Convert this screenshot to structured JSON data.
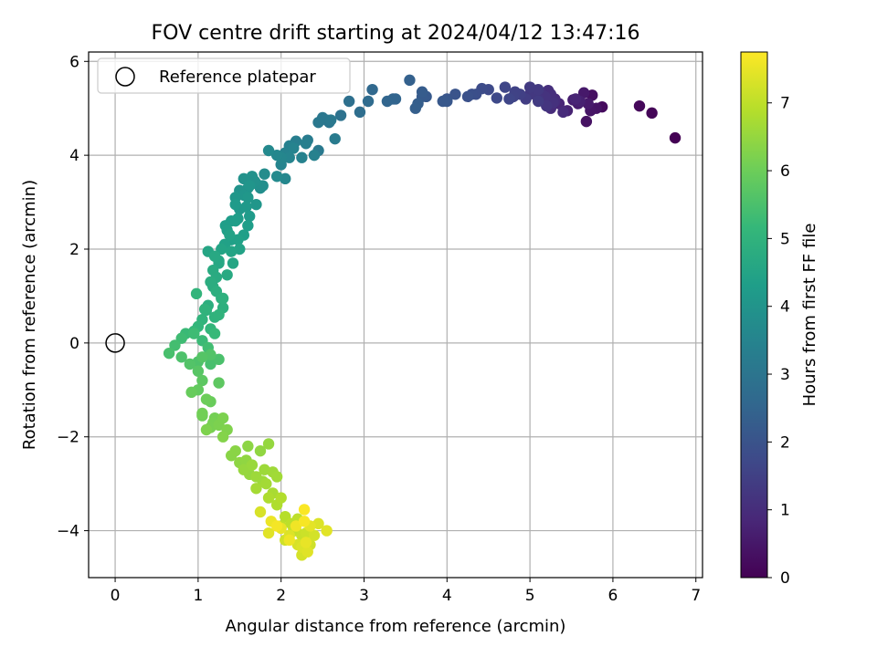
{
  "chart_data": {
    "type": "scatter",
    "title": "FOV centre drift starting at 2024/04/12 13:47:16",
    "xlabel": "Angular distance from reference (arcmin)",
    "ylabel": "Rotation from reference (arcmin)",
    "xlim": [
      -0.32,
      7.08
    ],
    "ylim": [
      -5.0,
      6.2
    ],
    "xticks": [
      "0",
      "1",
      "2",
      "3",
      "4",
      "5",
      "6",
      "7"
    ],
    "yticks": [
      "−4",
      "−2",
      "0",
      "2",
      "4",
      "6"
    ],
    "grid": true,
    "legend": {
      "position": "top-left",
      "entries": [
        "Reference platepar"
      ]
    },
    "reference_point": {
      "x": 0,
      "y": 0
    },
    "colorbar": {
      "label": "Hours from first FF file",
      "min": 0,
      "max": 7.75,
      "ticks": [
        "0",
        "1",
        "2",
        "3",
        "4",
        "5",
        "6",
        "7"
      ],
      "colormap": "viridis",
      "colors": [
        "#440154",
        "#482878",
        "#3e4989",
        "#31688e",
        "#26828e",
        "#1f9e89",
        "#35b779",
        "#6ece58",
        "#b5de2b",
        "#fde725"
      ]
    },
    "series": [
      {
        "points": [
          [
            6.75,
            4.37,
            0.0
          ],
          [
            6.47,
            4.9,
            0.08
          ],
          [
            6.32,
            5.05,
            0.15
          ],
          [
            5.87,
            5.03,
            0.22
          ],
          [
            5.75,
            5.28,
            0.3
          ],
          [
            5.68,
            4.72,
            0.37
          ],
          [
            5.73,
            4.95,
            0.44
          ],
          [
            5.65,
            5.33,
            0.52
          ],
          [
            5.58,
            5.1,
            0.6
          ],
          [
            5.52,
            5.18,
            0.67
          ],
          [
            5.45,
            4.95,
            0.74
          ],
          [
            5.35,
            5.1,
            0.82
          ],
          [
            5.3,
            5.2,
            0.9
          ],
          [
            5.25,
            5.0,
            0.97
          ],
          [
            5.22,
            5.38,
            1.04
          ],
          [
            5.15,
            5.3,
            1.12
          ],
          [
            5.1,
            5.2,
            1.2
          ],
          [
            5.05,
            5.35,
            1.27
          ],
          [
            5.0,
            5.45,
            1.34
          ],
          [
            4.95,
            5.2,
            1.42
          ],
          [
            4.88,
            5.3,
            1.5
          ],
          [
            4.8,
            5.25,
            1.57
          ],
          [
            4.7,
            5.45,
            1.64
          ],
          [
            4.6,
            5.22,
            1.72
          ],
          [
            4.42,
            5.42,
            1.8
          ],
          [
            4.35,
            5.3,
            1.87
          ],
          [
            4.25,
            5.25,
            1.94
          ],
          [
            4.1,
            5.3,
            2.02
          ],
          [
            4.0,
            5.15,
            2.1
          ],
          [
            3.75,
            5.25,
            2.17
          ],
          [
            3.7,
            5.35,
            2.24
          ],
          [
            3.62,
            5.0,
            2.32
          ],
          [
            3.55,
            5.6,
            2.4
          ],
          [
            3.35,
            5.2,
            2.47
          ],
          [
            3.28,
            5.15,
            2.54
          ],
          [
            3.1,
            5.4,
            2.62
          ],
          [
            3.05,
            5.15,
            2.7
          ],
          [
            2.95,
            4.92,
            2.77
          ],
          [
            2.82,
            5.15,
            2.84
          ],
          [
            2.72,
            4.85,
            2.92
          ],
          [
            2.58,
            4.7,
            3.0
          ],
          [
            2.5,
            4.8,
            3.07
          ],
          [
            2.45,
            4.1,
            3.14
          ],
          [
            2.32,
            4.32,
            3.22
          ],
          [
            2.18,
            4.3,
            3.3
          ],
          [
            2.1,
            4.2,
            3.37
          ],
          [
            2.05,
            4.05,
            3.44
          ],
          [
            2.0,
            3.8,
            3.52
          ],
          [
            1.95,
            4.0,
            3.6
          ],
          [
            1.85,
            4.1,
            3.67
          ],
          [
            1.8,
            3.6,
            3.74
          ],
          [
            1.75,
            3.3,
            3.82
          ],
          [
            1.68,
            3.45,
            3.9
          ],
          [
            1.6,
            3.3,
            3.97
          ],
          [
            1.55,
            3.15,
            4.04
          ],
          [
            1.5,
            2.85,
            4.12
          ],
          [
            1.45,
            2.95,
            4.2
          ],
          [
            1.4,
            2.6,
            4.27
          ],
          [
            1.35,
            2.4,
            4.34
          ],
          [
            1.32,
            2.1,
            4.42
          ],
          [
            1.28,
            2.0,
            4.5
          ],
          [
            1.25,
            1.75,
            4.57
          ],
          [
            1.2,
            1.85,
            4.64
          ],
          [
            1.18,
            1.55,
            4.72
          ],
          [
            1.15,
            1.3,
            4.8
          ],
          [
            1.12,
            0.8,
            4.87
          ],
          [
            1.1,
            0.7,
            4.94
          ],
          [
            1.05,
            0.5,
            5.02
          ],
          [
            1.0,
            0.35,
            5.1
          ],
          [
            0.95,
            0.25,
            5.17
          ],
          [
            0.85,
            0.2,
            5.24
          ],
          [
            0.8,
            0.1,
            5.32
          ],
          [
            0.72,
            -0.05,
            5.4
          ],
          [
            0.65,
            -0.22,
            5.47
          ],
          [
            0.8,
            -0.3,
            5.54
          ],
          [
            0.9,
            -0.45,
            5.62
          ],
          [
            1.0,
            -0.6,
            5.7
          ],
          [
            1.05,
            -0.8,
            5.77
          ],
          [
            1.0,
            -1.0,
            5.84
          ],
          [
            0.92,
            -1.05,
            5.92
          ],
          [
            1.1,
            -1.2,
            6.0
          ],
          [
            1.05,
            -1.5,
            6.07
          ],
          [
            1.18,
            -1.7,
            6.14
          ],
          [
            1.1,
            -1.85,
            6.22
          ],
          [
            1.3,
            -2.0,
            6.3
          ],
          [
            1.45,
            -2.3,
            6.37
          ],
          [
            1.58,
            -2.5,
            6.44
          ],
          [
            1.55,
            -2.7,
            6.52
          ],
          [
            1.7,
            -2.85,
            6.6
          ],
          [
            1.82,
            -3.0,
            6.67
          ],
          [
            1.9,
            -3.2,
            6.74
          ],
          [
            1.95,
            -3.45,
            6.82
          ],
          [
            2.05,
            -3.7,
            6.9
          ],
          [
            2.12,
            -3.85,
            6.97
          ],
          [
            2.18,
            -4.0,
            7.04
          ],
          [
            2.25,
            -4.1,
            7.12
          ],
          [
            2.35,
            -4.3,
            7.2
          ],
          [
            2.25,
            -4.52,
            7.27
          ],
          [
            2.45,
            -3.85,
            7.34
          ],
          [
            2.55,
            -4.0,
            7.42
          ],
          [
            2.3,
            -4.25,
            7.5
          ],
          [
            2.1,
            -4.2,
            7.57
          ],
          [
            1.95,
            -3.9,
            7.64
          ],
          [
            2.28,
            -3.55,
            7.72
          ],
          [
            1.28,
            0.95,
            4.9
          ],
          [
            1.22,
            1.1,
            4.85
          ],
          [
            1.35,
            1.45,
            4.7
          ],
          [
            1.42,
            1.7,
            4.55
          ],
          [
            1.48,
            2.2,
            4.4
          ],
          [
            1.55,
            2.3,
            4.35
          ],
          [
            1.62,
            2.7,
            4.2
          ],
          [
            1.7,
            2.95,
            4.05
          ],
          [
            1.25,
            0.6,
            5.0
          ],
          [
            1.15,
            0.3,
            5.1
          ],
          [
            1.2,
            0.2,
            5.2
          ],
          [
            1.12,
            -0.1,
            5.35
          ],
          [
            1.25,
            -0.35,
            5.5
          ],
          [
            1.15,
            -0.25,
            5.6
          ],
          [
            1.05,
            -0.3,
            5.65
          ],
          [
            1.2,
            -1.6,
            6.1
          ],
          [
            1.25,
            -1.75,
            6.2
          ],
          [
            1.35,
            -1.85,
            6.25
          ],
          [
            1.3,
            -1.6,
            6.2
          ],
          [
            1.6,
            -2.2,
            6.4
          ],
          [
            1.75,
            -2.3,
            6.45
          ],
          [
            1.85,
            -2.15,
            6.5
          ],
          [
            1.65,
            -2.6,
            6.55
          ],
          [
            1.8,
            -2.7,
            6.6
          ],
          [
            1.95,
            -2.85,
            6.65
          ],
          [
            1.7,
            -3.1,
            6.7
          ],
          [
            1.85,
            -3.3,
            6.8
          ],
          [
            2.0,
            -3.9,
            7.0
          ],
          [
            2.15,
            -3.95,
            7.05
          ],
          [
            2.3,
            -4.05,
            7.15
          ],
          [
            2.4,
            -4.1,
            7.25
          ],
          [
            2.2,
            -4.3,
            7.3
          ],
          [
            2.1,
            -4.1,
            7.35
          ],
          [
            1.85,
            -4.05,
            7.4
          ],
          [
            1.75,
            -3.6,
            7.3
          ],
          [
            2.35,
            -3.9,
            7.45
          ],
          [
            1.5,
            2.0,
            4.45
          ],
          [
            1.6,
            2.5,
            4.3
          ],
          [
            1.4,
            2.2,
            4.38
          ],
          [
            1.33,
            2.5,
            4.3
          ],
          [
            1.45,
            3.1,
            4.1
          ],
          [
            1.55,
            3.5,
            3.95
          ],
          [
            1.65,
            3.55,
            3.9
          ],
          [
            1.95,
            3.55,
            3.7
          ],
          [
            2.05,
            3.5,
            3.6
          ],
          [
            2.1,
            3.95,
            3.5
          ],
          [
            2.25,
            3.95,
            3.45
          ],
          [
            2.4,
            4.0,
            3.4
          ],
          [
            2.65,
            4.35,
            3.2
          ],
          [
            2.55,
            4.75,
            3.05
          ],
          [
            3.38,
            5.2,
            2.5
          ],
          [
            3.65,
            5.1,
            2.3
          ],
          [
            3.95,
            5.15,
            2.15
          ],
          [
            4.3,
            5.3,
            1.9
          ],
          [
            4.75,
            5.2,
            1.65
          ],
          [
            5.1,
            5.15,
            1.35
          ],
          [
            5.2,
            5.05,
            1.2
          ],
          [
            5.28,
            5.12,
            1.1
          ],
          [
            5.4,
            4.92,
            0.95
          ],
          [
            5.6,
            5.15,
            0.7
          ],
          [
            5.7,
            5.1,
            0.55
          ],
          [
            5.8,
            5.0,
            0.4
          ],
          [
            1.3,
            0.75,
            4.88
          ],
          [
            1.18,
            1.2,
            4.78
          ],
          [
            1.22,
            1.4,
            4.73
          ],
          [
            1.4,
            1.95,
            4.5
          ],
          [
            1.12,
            1.95,
            4.56
          ],
          [
            1.48,
            2.65,
            4.28
          ],
          [
            1.58,
            2.9,
            4.15
          ],
          [
            1.62,
            3.35,
            4.02
          ],
          [
            1.5,
            3.25,
            3.98
          ],
          [
            1.78,
            3.35,
            3.8
          ],
          [
            1.2,
            0.55,
            4.98
          ],
          [
            1.08,
            0.72,
            5.0
          ],
          [
            0.98,
            1.05,
            5.05
          ],
          [
            1.05,
            0.05,
            5.25
          ],
          [
            0.95,
            0.2,
            5.3
          ],
          [
            1.15,
            -0.45,
            5.45
          ],
          [
            1.0,
            -0.4,
            5.55
          ],
          [
            1.25,
            -0.85,
            5.78
          ],
          [
            1.15,
            -1.25,
            5.95
          ],
          [
            1.05,
            -1.55,
            6.05
          ],
          [
            1.15,
            -1.8,
            6.15
          ],
          [
            1.4,
            -2.4,
            6.35
          ],
          [
            1.5,
            -2.55,
            6.42
          ],
          [
            1.62,
            -2.8,
            6.5
          ],
          [
            1.78,
            -2.95,
            6.6
          ],
          [
            1.9,
            -2.75,
            6.62
          ],
          [
            2.0,
            -3.3,
            6.85
          ],
          [
            2.2,
            -3.75,
            7.0
          ],
          [
            2.05,
            -4.2,
            7.2
          ],
          [
            2.25,
            -4.35,
            7.35
          ],
          [
            2.32,
            -4.45,
            7.4
          ],
          [
            2.0,
            -3.95,
            7.5
          ],
          [
            1.88,
            -3.8,
            7.55
          ],
          [
            2.18,
            -3.9,
            7.6
          ],
          [
            2.28,
            -3.8,
            7.68
          ],
          [
            1.3,
            0.95,
            4.92
          ],
          [
            1.25,
            1.7,
            4.6
          ],
          [
            1.38,
            2.3,
            4.45
          ],
          [
            1.45,
            2.6,
            4.32
          ],
          [
            1.6,
            3.1,
            4.08
          ],
          [
            1.7,
            3.4,
            3.88
          ],
          [
            2.0,
            3.95,
            3.58
          ],
          [
            2.15,
            4.15,
            3.48
          ],
          [
            2.3,
            4.25,
            3.35
          ],
          [
            2.6,
            4.75,
            3.1
          ],
          [
            2.45,
            4.7,
            3.12
          ],
          [
            5.0,
            5.3,
            1.25
          ],
          [
            5.1,
            5.4,
            1.3
          ],
          [
            5.18,
            5.25,
            1.15
          ],
          [
            5.25,
            5.3,
            1.05
          ],
          [
            5.3,
            5.15,
            1.0
          ],
          [
            5.55,
            5.2,
            0.8
          ],
          [
            4.82,
            5.35,
            1.55
          ],
          [
            4.5,
            5.4,
            1.75
          ],
          [
            4.0,
            5.2,
            2.05
          ],
          [
            3.7,
            5.25,
            2.2
          ]
        ]
      }
    ]
  }
}
